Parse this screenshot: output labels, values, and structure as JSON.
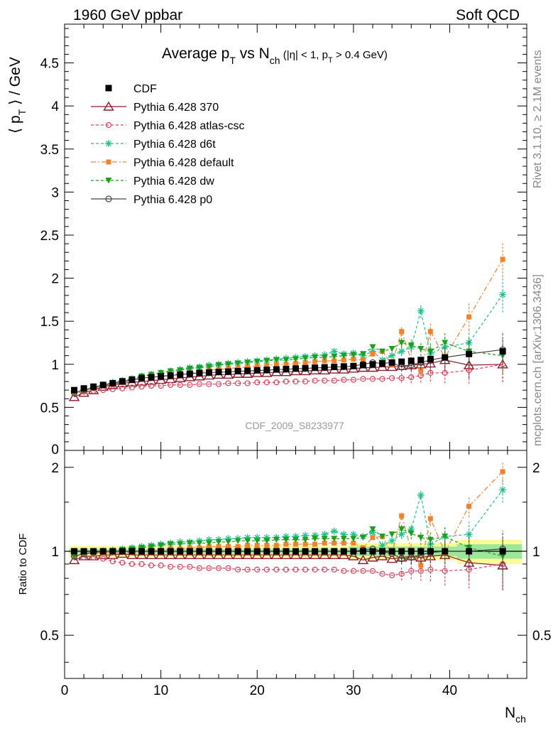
{
  "header": {
    "left": "1960 GeV ppbar",
    "right": "Soft QCD"
  },
  "side_labels": {
    "rivet": "Rivet 3.1.10, ≥ 2.1M events",
    "mcplots": "mcplots.cern.ch [arXiv:1306.3436]"
  },
  "chart_data": {
    "type": "scatter",
    "title": "Average p_T vs N_ch (|η| < 1, p_T > 0.4 GeV)",
    "title_parts": {
      "main": "Average p",
      "main_sub": "T",
      "vs": " vs N",
      "vs_sub": "ch",
      "cut1": " (|η| < 1, p",
      "cut_sub": "T",
      "cut2": " > 0.4 GeV)"
    },
    "ylabel": "⟨ p_T ⟩ / GeV",
    "ylabel_parts": {
      "open": "⟨ p",
      "sub": "T",
      "close": " ⟩ / GeV"
    },
    "xlabel": "N_ch",
    "xlabel_parts": {
      "main": "N",
      "sub": "ch"
    },
    "ratio_ylabel": "Ratio to CDF",
    "watermark": "CDF_2009_S8233977",
    "xlim": [
      0,
      48
    ],
    "ylim": [
      0,
      4.95
    ],
    "ratio_ylim": [
      0.35,
      2.3
    ],
    "x_ticks": [
      "0",
      "10",
      "20",
      "30",
      "40"
    ],
    "y_ticks": [
      "0.5",
      "1",
      "1.5",
      "2",
      "2.5",
      "3",
      "3.5",
      "4",
      "4.5"
    ],
    "ratio_ticks": [
      "0.5",
      "1",
      "2"
    ],
    "legend_position": "top-left",
    "x": [
      1,
      2,
      3,
      4,
      5,
      6,
      7,
      8,
      9,
      10,
      11,
      12,
      13,
      14,
      15,
      16,
      17,
      18,
      19,
      20,
      21,
      22,
      23,
      24,
      25,
      26,
      27,
      28,
      29,
      30,
      31,
      32,
      33,
      34,
      35,
      36,
      37,
      38,
      39.5,
      42,
      45.5
    ],
    "series": [
      {
        "name": "CDF",
        "color": "#000000",
        "values": [
          0.7,
          0.72,
          0.74,
          0.76,
          0.78,
          0.8,
          0.82,
          0.84,
          0.85,
          0.86,
          0.87,
          0.88,
          0.89,
          0.9,
          0.905,
          0.91,
          0.915,
          0.92,
          0.925,
          0.93,
          0.935,
          0.94,
          0.945,
          0.95,
          0.955,
          0.96,
          0.965,
          0.97,
          0.975,
          0.98,
          0.99,
          1.0,
          1.01,
          1.02,
          1.03,
          1.04,
          1.05,
          1.06,
          1.08,
          1.12,
          1.15
        ],
        "ratio": [
          1,
          1,
          1,
          1,
          1,
          1,
          1,
          1,
          1,
          1,
          1,
          1,
          1,
          1,
          1,
          1,
          1,
          1,
          1,
          1,
          1,
          1,
          1,
          1,
          1,
          1,
          1,
          1,
          1,
          1,
          1,
          1,
          1,
          1,
          1,
          1,
          1,
          1,
          1,
          1,
          1
        ]
      },
      {
        "name": "Pythia 6.428 370",
        "color": "#8b1a2a",
        "values": [
          0.62,
          0.67,
          0.7,
          0.74,
          0.76,
          0.78,
          0.79,
          0.8,
          0.81,
          0.82,
          0.83,
          0.84,
          0.85,
          0.86,
          0.87,
          0.88,
          0.88,
          0.89,
          0.89,
          0.9,
          0.9,
          0.91,
          0.91,
          0.92,
          0.92,
          0.93,
          0.93,
          0.94,
          0.94,
          0.95,
          0.96,
          0.96,
          0.97,
          0.97,
          0.98,
          0.99,
          1.0,
          1.01,
          1.05,
          0.99,
          1.0
        ],
        "ratio": [
          0.93,
          0.96,
          0.96,
          0.97,
          0.97,
          0.98,
          0.97,
          0.97,
          0.97,
          0.97,
          0.97,
          0.97,
          0.97,
          0.97,
          0.97,
          0.97,
          0.97,
          0.97,
          0.97,
          0.97,
          0.97,
          0.97,
          0.97,
          0.97,
          0.97,
          0.97,
          0.97,
          0.97,
          0.97,
          0.96,
          0.93,
          0.95,
          0.96,
          0.94,
          0.95,
          0.96,
          0.95,
          0.96,
          0.97,
          0.91,
          0.89
        ]
      },
      {
        "name": "Pythia 6.428 atlas-csc",
        "color": "#e0405a",
        "values": [
          0.66,
          0.68,
          0.69,
          0.7,
          0.71,
          0.72,
          0.73,
          0.74,
          0.75,
          0.75,
          0.76,
          0.76,
          0.76,
          0.77,
          0.77,
          0.77,
          0.78,
          0.78,
          0.78,
          0.79,
          0.79,
          0.79,
          0.8,
          0.8,
          0.8,
          0.81,
          0.81,
          0.81,
          0.82,
          0.82,
          0.83,
          0.83,
          0.83,
          0.84,
          0.84,
          0.85,
          0.87,
          0.9,
          0.9,
          0.93,
          1.0
        ],
        "ratio": [
          0.96,
          0.95,
          0.95,
          0.94,
          0.92,
          0.91,
          0.9,
          0.9,
          0.89,
          0.89,
          0.88,
          0.88,
          0.88,
          0.87,
          0.87,
          0.87,
          0.87,
          0.86,
          0.86,
          0.86,
          0.86,
          0.86,
          0.86,
          0.86,
          0.86,
          0.86,
          0.86,
          0.86,
          0.85,
          0.85,
          0.85,
          0.85,
          0.83,
          0.82,
          0.83,
          0.85,
          0.85,
          0.86,
          0.85,
          0.86,
          0.9
        ]
      },
      {
        "name": "Pythia 6.428 d6t",
        "color": "#17c48a",
        "values": [
          0.68,
          0.7,
          0.73,
          0.76,
          0.79,
          0.81,
          0.83,
          0.86,
          0.88,
          0.9,
          0.92,
          0.94,
          0.96,
          0.97,
          0.99,
          1.0,
          1.01,
          1.02,
          1.03,
          1.04,
          1.05,
          1.06,
          1.07,
          1.08,
          1.09,
          1.1,
          1.11,
          1.15,
          1.12,
          1.13,
          1.1,
          1.15,
          1.05,
          1.1,
          1.15,
          1.2,
          1.62,
          1.12,
          1.2,
          1.25,
          1.81
        ],
        "ratio": [
          0.96,
          0.98,
          0.99,
          1.0,
          1.01,
          1.02,
          1.03,
          1.04,
          1.05,
          1.06,
          1.07,
          1.08,
          1.08,
          1.09,
          1.1,
          1.1,
          1.11,
          1.11,
          1.12,
          1.12,
          1.12,
          1.12,
          1.13,
          1.13,
          1.14,
          1.14,
          1.15,
          1.18,
          1.15,
          1.15,
          1.13,
          1.17,
          1.05,
          1.09,
          1.15,
          1.2,
          1.59,
          1.06,
          1.13,
          1.15,
          1.66
        ]
      },
      {
        "name": "Pythia 6.428 default",
        "color": "#f58028",
        "values": [
          0.67,
          0.69,
          0.72,
          0.75,
          0.77,
          0.79,
          0.81,
          0.83,
          0.85,
          0.86,
          0.88,
          0.89,
          0.9,
          0.91,
          0.93,
          0.94,
          0.95,
          0.96,
          0.97,
          0.98,
          0.99,
          1.0,
          1.0,
          1.01,
          1.02,
          1.03,
          1.04,
          1.04,
          1.05,
          1.06,
          1.05,
          1.12,
          1.15,
          1.0,
          1.38,
          1.05,
          0.93,
          1.38,
          1.08,
          1.55,
          2.22
        ],
        "ratio": [
          0.96,
          0.98,
          0.98,
          0.99,
          0.99,
          0.99,
          0.99,
          1.0,
          1.01,
          1.01,
          1.02,
          1.02,
          1.03,
          1.03,
          1.04,
          1.04,
          1.04,
          1.04,
          1.05,
          1.05,
          1.05,
          1.05,
          1.06,
          1.06,
          1.06,
          1.06,
          1.07,
          1.07,
          1.07,
          1.07,
          1.03,
          1.12,
          1.13,
          0.98,
          1.34,
          1.01,
          0.89,
          1.31,
          0.99,
          1.45,
          1.93
        ]
      },
      {
        "name": "Pythia 6.428 dw",
        "color": "#1aa01a",
        "values": [
          0.67,
          0.7,
          0.73,
          0.76,
          0.78,
          0.81,
          0.83,
          0.86,
          0.88,
          0.9,
          0.92,
          0.93,
          0.95,
          0.96,
          0.97,
          0.99,
          1.0,
          1.01,
          1.02,
          1.03,
          1.04,
          1.05,
          1.05,
          1.06,
          1.07,
          1.08,
          1.08,
          1.09,
          1.1,
          1.11,
          1.12,
          1.2,
          1.15,
          1.18,
          1.25,
          1.22,
          1.18,
          1.15,
          1.25,
          1.15,
          1.1
        ],
        "ratio": [
          0.96,
          0.98,
          0.99,
          1.0,
          1.0,
          1.01,
          1.02,
          1.03,
          1.04,
          1.05,
          1.06,
          1.06,
          1.07,
          1.07,
          1.07,
          1.08,
          1.08,
          1.09,
          1.09,
          1.09,
          1.09,
          1.1,
          1.1,
          1.1,
          1.1,
          1.11,
          1.11,
          1.11,
          1.11,
          1.11,
          1.12,
          1.2,
          1.13,
          1.15,
          1.2,
          1.16,
          1.12,
          1.1,
          1.13,
          1.03,
          0.96
        ]
      },
      {
        "name": "Pythia 6.428 p0",
        "color": "#444444",
        "values": [
          0.67,
          0.7,
          0.73,
          0.76,
          0.78,
          0.8,
          0.82,
          0.84,
          0.85,
          0.86,
          0.87,
          0.88,
          0.89,
          0.9,
          0.9,
          0.91,
          0.91,
          0.92,
          0.92,
          0.93,
          0.93,
          0.94,
          0.94,
          0.95,
          0.95,
          0.96,
          0.96,
          0.97,
          0.97,
          0.98,
          1.0,
          1.02,
          1.01,
          1.02,
          0.97,
          0.99,
          1.02,
          1.05,
          1.08,
          1.12,
          1.17
        ],
        "ratio": [
          0.96,
          0.98,
          0.99,
          1.0,
          1.0,
          1.0,
          1.0,
          1.0,
          1.0,
          1.0,
          1.0,
          1.0,
          1.0,
          1.0,
          1.0,
          1.0,
          1.0,
          1.0,
          1.0,
          1.0,
          1.0,
          1.0,
          1.0,
          1.0,
          1.0,
          1.0,
          1.0,
          1.0,
          1.0,
          1.0,
          1.01,
          1.02,
          1.0,
          0.98,
          0.94,
          0.95,
          0.97,
          0.99,
          1.0,
          1.0,
          1.02
        ]
      }
    ]
  }
}
